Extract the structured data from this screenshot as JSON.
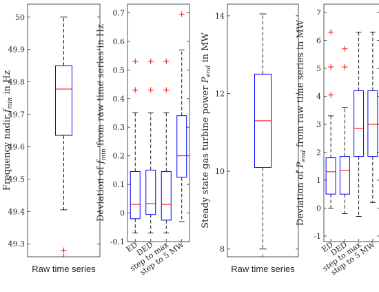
{
  "colors": {
    "box": "#0000ff",
    "median": "#ff0000",
    "outlier": "#ff0000",
    "whisker": "#000000",
    "axis": "#262626"
  },
  "chart_data": [
    {
      "type": "box",
      "ylabel_parts": [
        [
          "Frequency nadir ",
          "normal"
        ],
        [
          "f",
          "italic"
        ],
        [
          "min",
          "sub"
        ],
        [
          " in Hz",
          "normal"
        ]
      ],
      "ylim": [
        49.26,
        50.04
      ],
      "yticks": [
        49.3,
        49.4,
        49.5,
        49.6,
        49.7,
        49.8,
        49.9,
        50
      ],
      "ytick_labels": [
        "49.3",
        "49.4",
        "49.5",
        "49.6",
        "49.7",
        "49.8",
        "49.9",
        "50"
      ],
      "categories": [
        "Raw time series"
      ],
      "boxes": [
        {
          "whisker_low": 49.405,
          "q1": 49.635,
          "median": 49.778,
          "q3": 49.85,
          "whisker_high": 50.0,
          "outliers": [
            49.28
          ]
        }
      ]
    },
    {
      "type": "box",
      "ylabel_parts": [
        [
          "Deviation of ",
          "normal"
        ],
        [
          "f",
          "italic"
        ],
        [
          "min",
          "sub"
        ],
        [
          " from raw time series in Hz",
          "normal"
        ]
      ],
      "ylim": [
        -0.1,
        0.73
      ],
      "yticks": [
        -0.1,
        0,
        0.1,
        0.2,
        0.3,
        0.4,
        0.5,
        0.6,
        0.7
      ],
      "ytick_labels": [
        "-0.1",
        "0",
        "0.1",
        "0.2",
        "0.3",
        "0.4",
        "0.5",
        "0.6",
        "0.7"
      ],
      "categories": [
        "ED",
        "DED",
        "step to max",
        "step to 5 MW"
      ],
      "boxes": [
        {
          "whisker_low": -0.07,
          "q1": -0.02,
          "median": 0.03,
          "q3": 0.145,
          "whisker_high": 0.35,
          "outliers": [
            0.43,
            0.53
          ]
        },
        {
          "whisker_low": -0.07,
          "q1": -0.005,
          "median": 0.033,
          "q3": 0.15,
          "whisker_high": 0.35,
          "outliers": [
            0.43,
            0.53
          ]
        },
        {
          "whisker_low": -0.07,
          "q1": -0.025,
          "median": 0.03,
          "q3": 0.145,
          "whisker_high": 0.35,
          "outliers": [
            0.43,
            0.53
          ]
        },
        {
          "whisker_low": -0.03,
          "q1": 0.125,
          "median": 0.2,
          "q3": 0.34,
          "whisker_high": 0.57,
          "outliers": [
            0.695
          ]
        }
      ]
    },
    {
      "type": "box",
      "ylabel_parts": [
        [
          "Steady state gas turbine power ",
          "normal"
        ],
        [
          "P",
          "italic"
        ],
        [
          "end",
          "sub"
        ],
        [
          " in MW",
          "normal"
        ]
      ],
      "ylim": [
        7.8,
        14.3
      ],
      "yticks": [
        8,
        10,
        12,
        14
      ],
      "ytick_labels": [
        "8",
        "10",
        "12",
        "14"
      ],
      "categories": [
        "Raw time series"
      ],
      "boxes": [
        {
          "whisker_low": 8.0,
          "q1": 10.1,
          "median": 11.3,
          "q3": 12.5,
          "whisker_high": 14.05,
          "outliers": []
        }
      ]
    },
    {
      "type": "box",
      "ylabel_parts": [
        [
          "Deviation of ",
          "normal"
        ],
        [
          "P",
          "italic"
        ],
        [
          "end",
          "sub"
        ],
        [
          " from raw time series in MW",
          "normal"
        ]
      ],
      "ylim": [
        -1.2,
        7.3
      ],
      "yticks": [
        -1,
        0,
        1,
        2,
        3,
        4,
        5,
        6,
        7
      ],
      "ytick_labels": [
        "-1",
        "0",
        "1",
        "2",
        "3",
        "4",
        "5",
        "6",
        "7"
      ],
      "categories": [
        "ED",
        "DED",
        "step to max",
        "step to 5 MW"
      ],
      "boxes": [
        {
          "whisker_low": 0.0,
          "q1": 0.5,
          "median": 1.3,
          "q3": 1.8,
          "whisker_high": 3.3,
          "outliers": [
            4.05,
            5.05,
            6.3
          ]
        },
        {
          "whisker_low": -0.2,
          "q1": 0.5,
          "median": 1.35,
          "q3": 1.85,
          "whisker_high": 3.6,
          "outliers": [
            5.05,
            5.7
          ]
        },
        {
          "whisker_low": -0.3,
          "q1": 1.85,
          "median": 2.85,
          "q3": 4.2,
          "whisker_high": 6.3,
          "outliers": []
        },
        {
          "whisker_low": 0.2,
          "q1": 1.85,
          "median": 3.0,
          "q3": 4.2,
          "whisker_high": 6.3,
          "outliers": []
        }
      ]
    }
  ]
}
